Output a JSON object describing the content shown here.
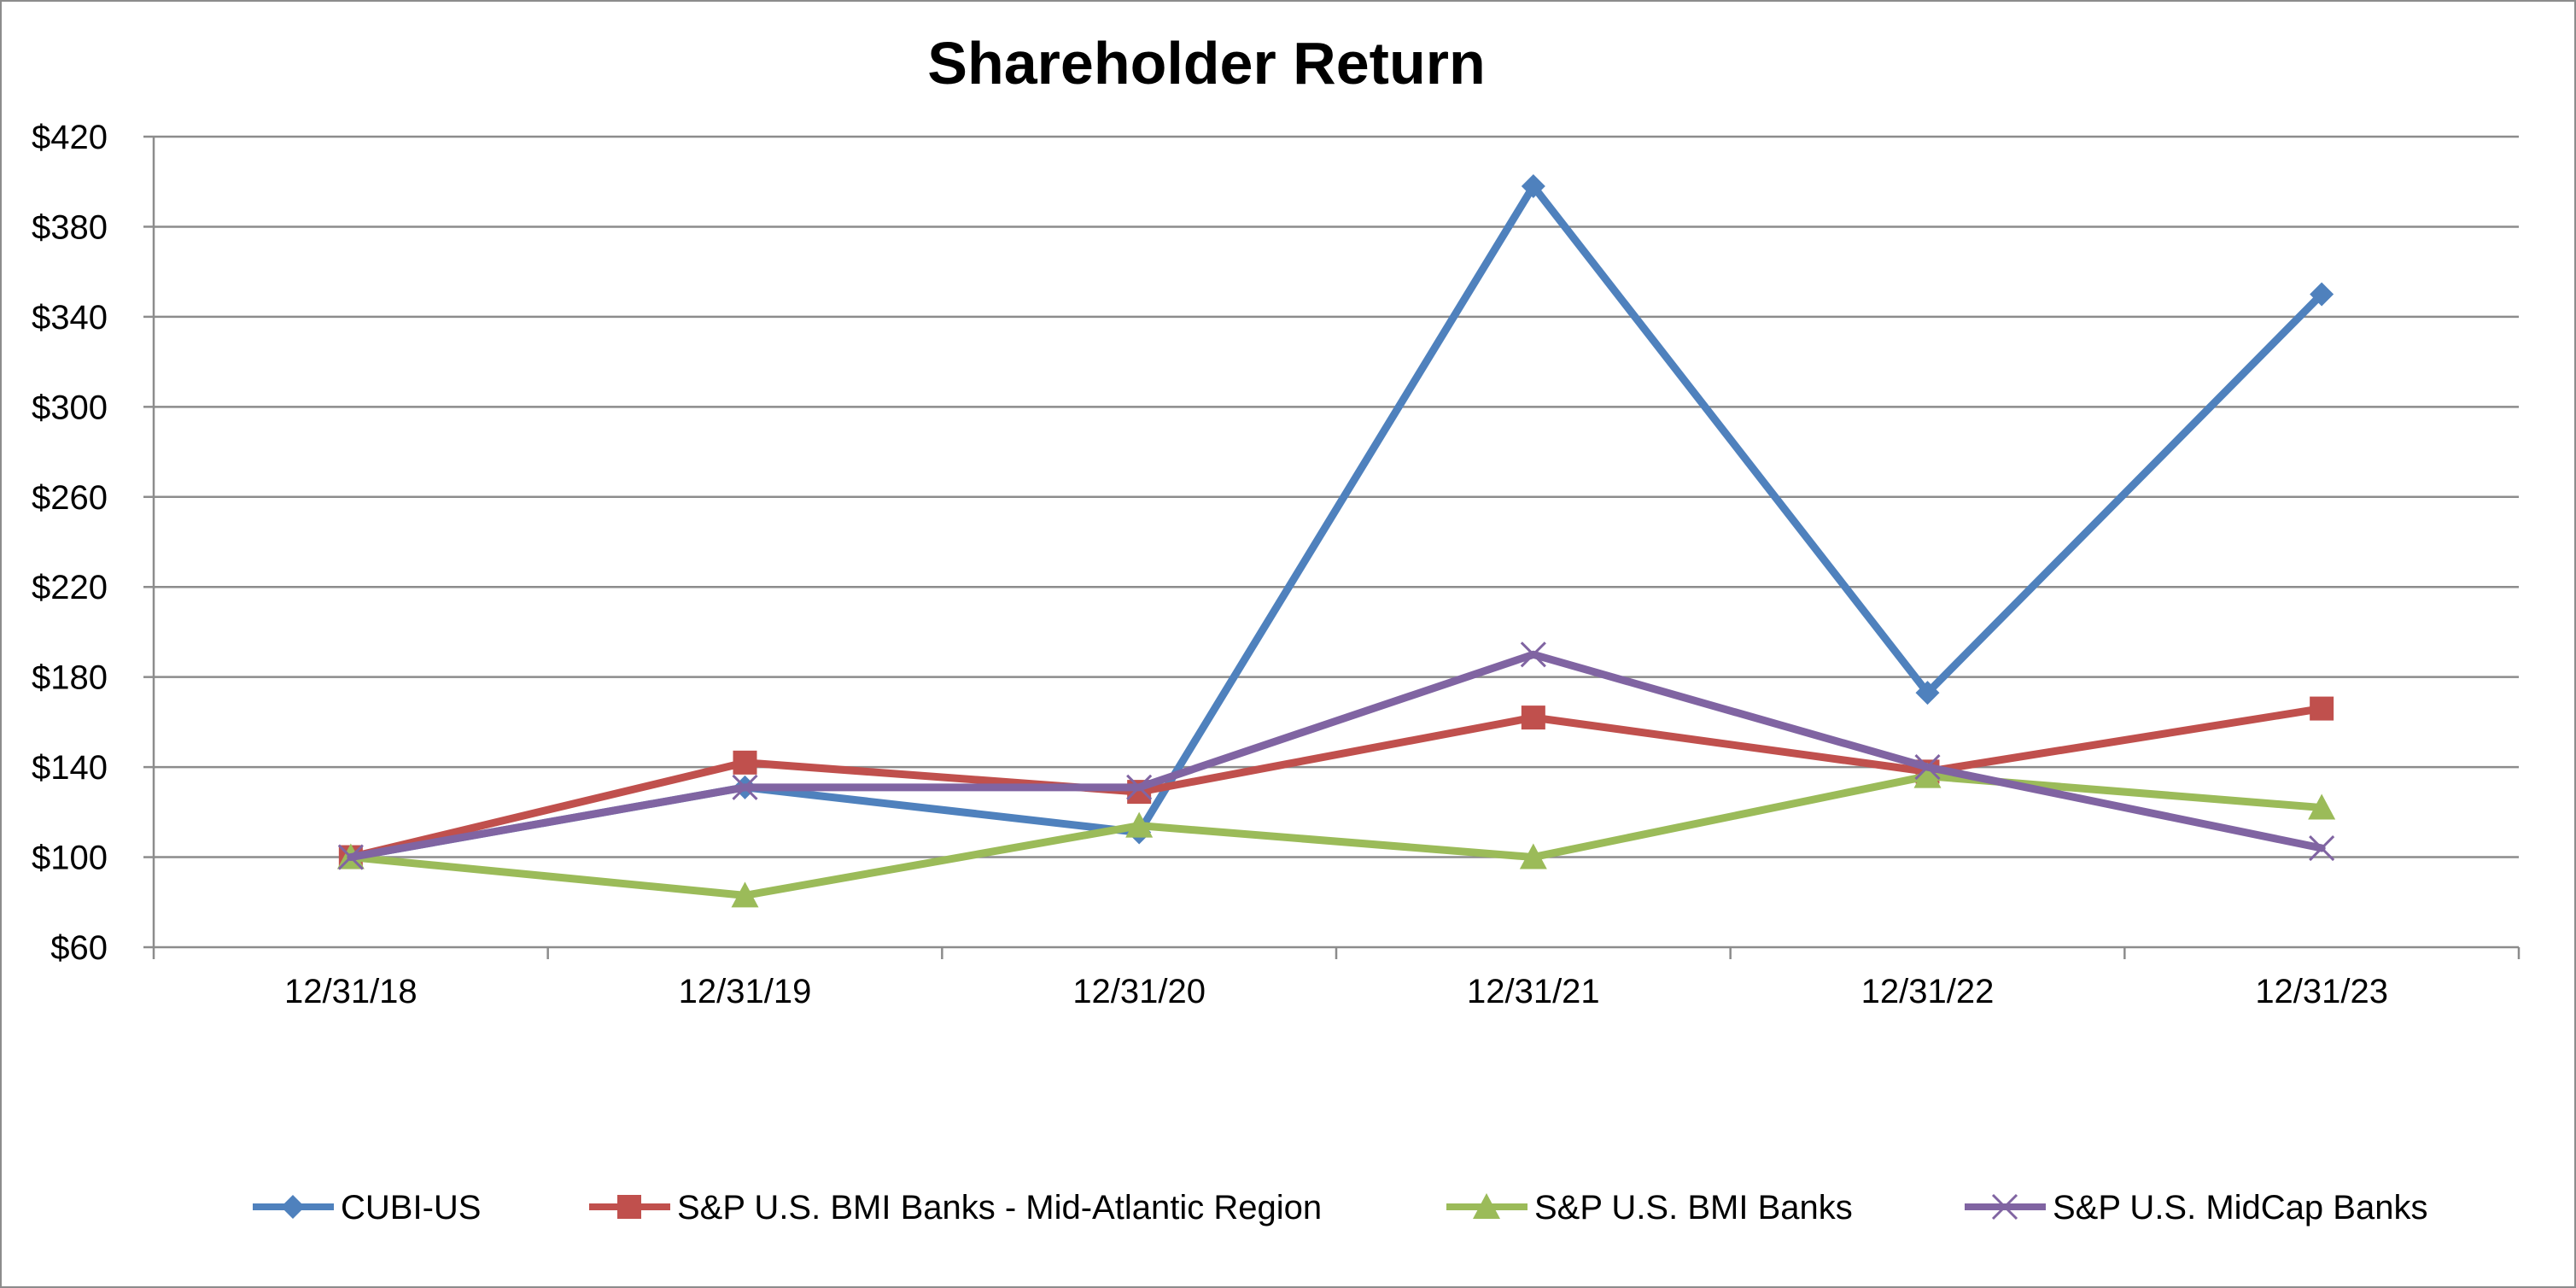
{
  "chart_data": {
    "type": "line",
    "title": "Shareholder Return",
    "xlabel": "",
    "ylabel": "",
    "categories": [
      "12/31/18",
      "12/31/19",
      "12/31/20",
      "12/31/21",
      "12/31/22",
      "12/31/23"
    ],
    "ylim": [
      60,
      420
    ],
    "yticks": [
      60,
      100,
      140,
      180,
      220,
      260,
      300,
      340,
      380,
      420
    ],
    "ytick_labels": [
      "$60",
      "$100",
      "$140",
      "$180",
      "$220",
      "$260",
      "$300",
      "$340",
      "$380",
      "$420"
    ],
    "grid": true,
    "legend_position": "bottom",
    "series": [
      {
        "name": "CUBI-US",
        "color": "#4f81bd",
        "marker": "diamond",
        "values": [
          100,
          131,
          111,
          398,
          173,
          350
        ]
      },
      {
        "name": "S&P U.S. BMI Banks - Mid-Atlantic Region",
        "color": "#c0504d",
        "marker": "square",
        "values": [
          100,
          142,
          129,
          162,
          138,
          166
        ]
      },
      {
        "name": "S&P U.S. BMI Banks",
        "color": "#9bbb59",
        "marker": "triangle",
        "values": [
          100,
          83,
          114,
          100,
          136,
          122
        ]
      },
      {
        "name": "S&P U.S. MidCap Banks",
        "color": "#8064a2",
        "marker": "x",
        "values": [
          100,
          131,
          131,
          190,
          140,
          104
        ]
      }
    ]
  }
}
